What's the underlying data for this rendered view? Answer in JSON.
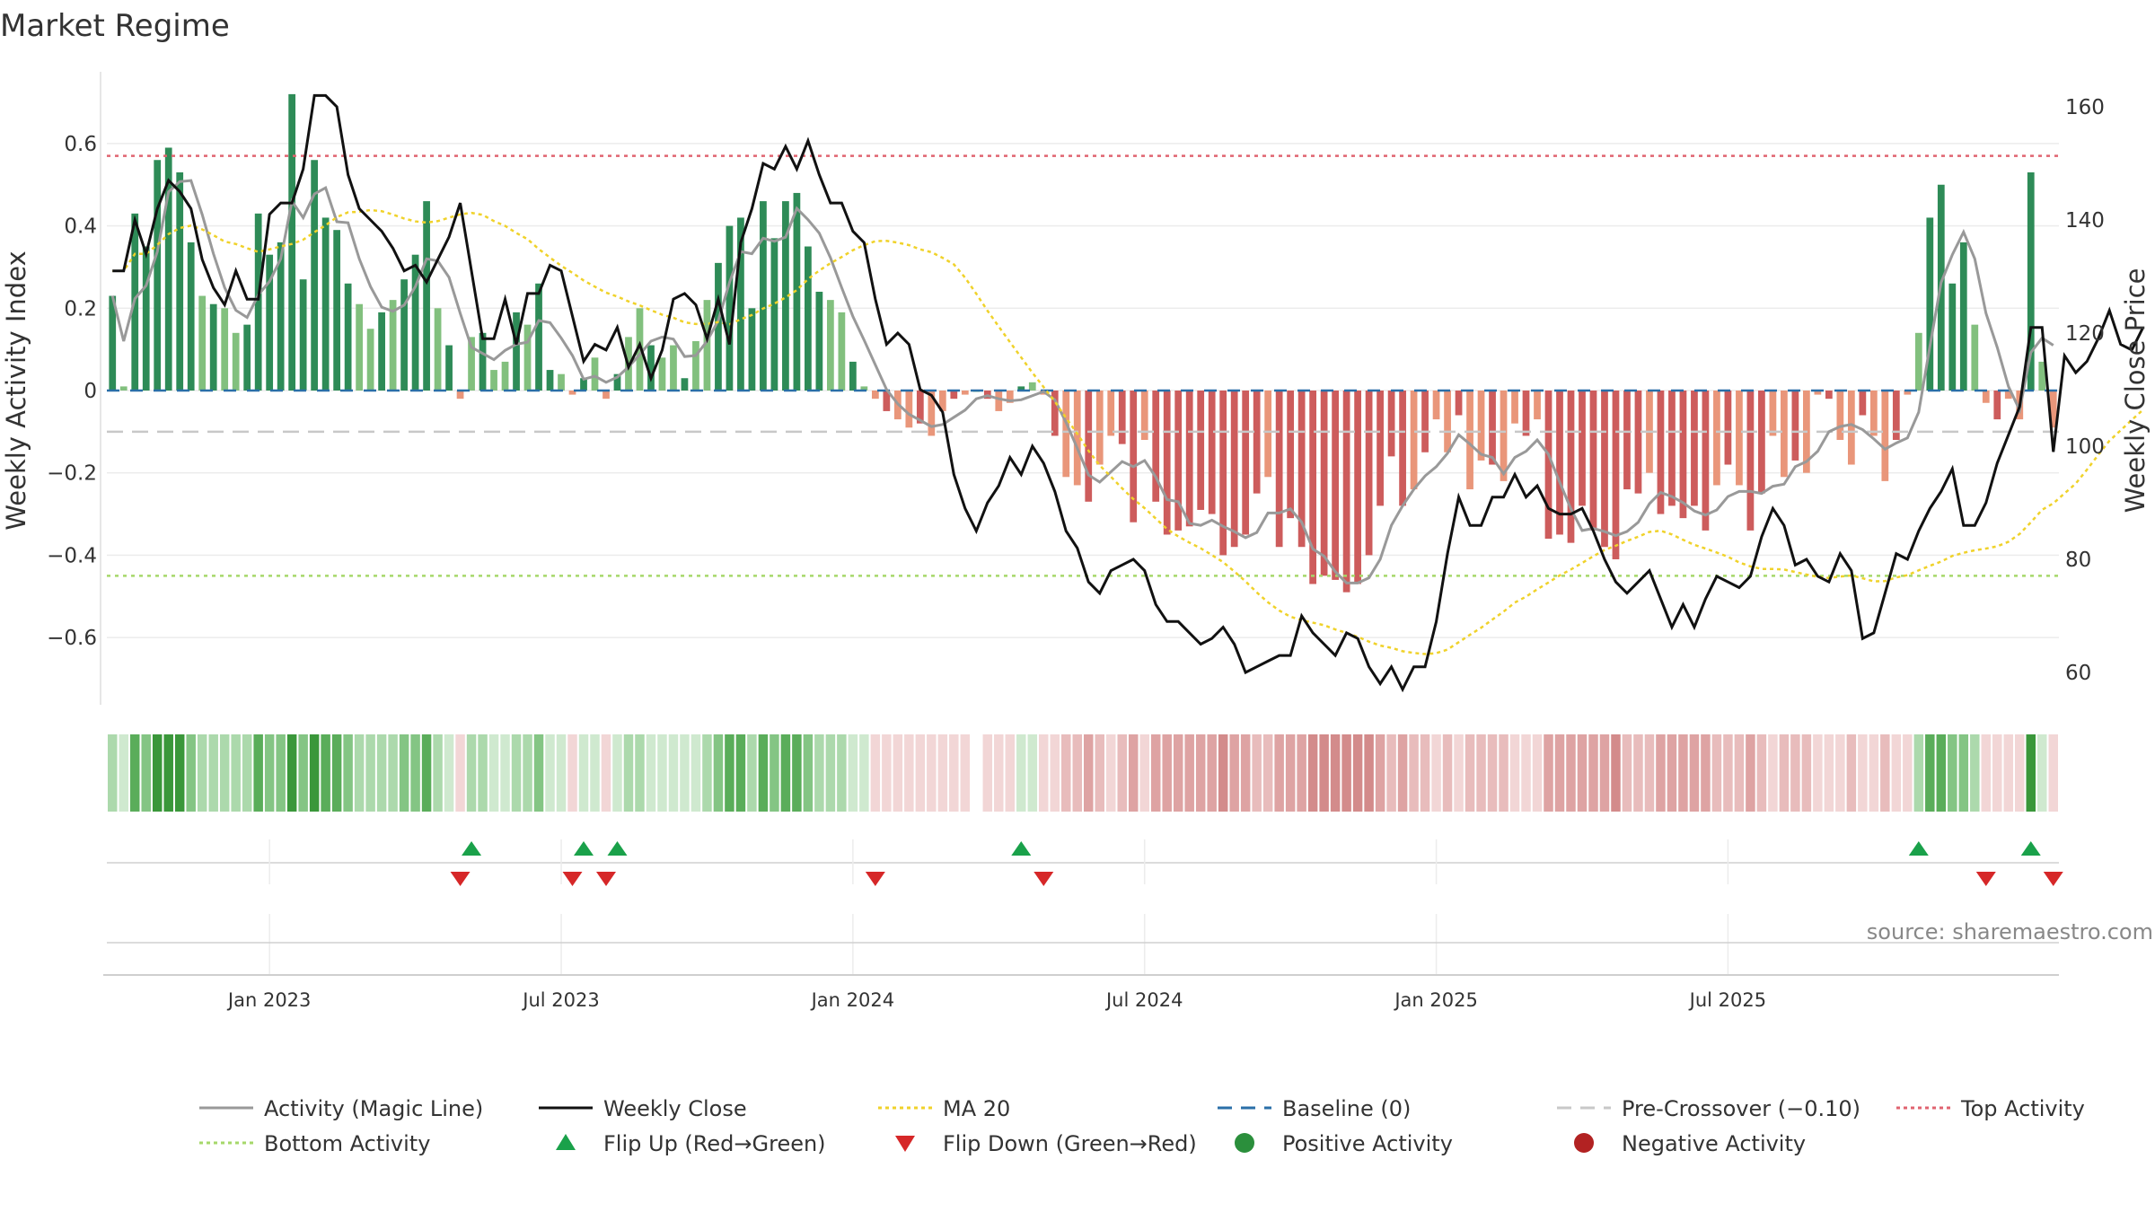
{
  "chart_data": {
    "type": "bar",
    "title": "Market Regime",
    "left_axis": {
      "label": "Weekly Activity Index",
      "ticks": [
        -0.6,
        -0.4,
        -0.2,
        0,
        0.2,
        0.4,
        0.6
      ],
      "tick_labels": [
        "−0.6",
        "−0.4",
        "−0.2",
        "0",
        "0.2",
        "0.4",
        "0.6"
      ],
      "range": [
        -0.76,
        0.76
      ]
    },
    "right_axis": {
      "label": "Weekly Close Price",
      "ticks": [
        60,
        80,
        100,
        120,
        140,
        160
      ],
      "tick_labels": [
        "60",
        "80",
        "100",
        "120",
        "140",
        "160"
      ],
      "range": [
        54,
        163
      ]
    },
    "x_axis": {
      "tick_labels": [
        "Jan 2023",
        "Jul 2023",
        "Jan 2024",
        "Jul 2024",
        "Jan 2025",
        "Jul 2025"
      ],
      "tick_weeks": [
        14,
        40,
        66,
        92,
        118,
        144
      ]
    },
    "top_activity": 0.57,
    "bottom_activity": -0.45,
    "pre_crossover": -0.1,
    "baseline": 0,
    "activity": [
      0.23,
      0.01,
      0.43,
      0.35,
      0.56,
      0.59,
      0.53,
      0.36,
      0.23,
      0.21,
      0.2,
      0.14,
      0.16,
      0.43,
      0.33,
      0.36,
      0.72,
      0.27,
      0.56,
      0.42,
      0.39,
      0.26,
      0.21,
      0.15,
      0.19,
      0.22,
      0.27,
      0.33,
      0.46,
      0.2,
      0.11,
      -0.02,
      0.13,
      0.14,
      0.05,
      0.07,
      0.19,
      0.16,
      0.26,
      0.05,
      0.04,
      -0.01,
      0.03,
      0.08,
      -0.02,
      0.04,
      0.13,
      0.2,
      0.11,
      0.08,
      0.11,
      0.03,
      0.12,
      0.22,
      0.31,
      0.4,
      0.42,
      0.2,
      0.46,
      0.37,
      0.46,
      0.48,
      0.35,
      0.24,
      0.22,
      0.19,
      0.07,
      0.01,
      -0.02,
      -0.05,
      -0.07,
      -0.09,
      -0.08,
      -0.11,
      -0.05,
      -0.02,
      -0.01,
      0,
      -0.02,
      -0.05,
      -0.03,
      0.01,
      0.02,
      -0.01,
      -0.11,
      -0.21,
      -0.23,
      -0.27,
      -0.18,
      -0.11,
      -0.13,
      -0.32,
      -0.12,
      -0.27,
      -0.35,
      -0.34,
      -0.33,
      -0.29,
      -0.3,
      -0.4,
      -0.38,
      -0.35,
      -0.25,
      -0.21,
      -0.38,
      -0.31,
      -0.38,
      -0.47,
      -0.45,
      -0.46,
      -0.49,
      -0.47,
      -0.4,
      -0.28,
      -0.16,
      -0.28,
      -0.24,
      -0.15,
      -0.07,
      -0.15,
      -0.06,
      -0.24,
      -0.17,
      -0.18,
      -0.22,
      -0.08,
      -0.11,
      -0.07,
      -0.36,
      -0.35,
      -0.37,
      -0.28,
      -0.34,
      -0.38,
      -0.41,
      -0.24,
      -0.25,
      -0.2,
      -0.3,
      -0.28,
      -0.31,
      -0.28,
      -0.34,
      -0.23,
      -0.18,
      -0.23,
      -0.34,
      -0.25,
      -0.11,
      -0.21,
      -0.17,
      -0.2,
      -0.01,
      -0.02,
      -0.12,
      -0.18,
      -0.06,
      -0.11,
      -0.22,
      -0.12,
      -0.01,
      0.14,
      0.42,
      0.5,
      0.26,
      0.36,
      0.16,
      -0.03,
      -0.07,
      -0.02,
      -0.07,
      0.53,
      0.07,
      -0.09
    ],
    "weekly_close": [
      131,
      131,
      140,
      134,
      142,
      147,
      145,
      142,
      133,
      128,
      125,
      131,
      126,
      126,
      141,
      143,
      143,
      149,
      162,
      162,
      160,
      148,
      142,
      140,
      138,
      135,
      131,
      132,
      129,
      133,
      137,
      143,
      131,
      119,
      119,
      126,
      118,
      127,
      127,
      132,
      131,
      123,
      115,
      118,
      117,
      121,
      114,
      118,
      112,
      117,
      126,
      127,
      125,
      119,
      126,
      118,
      136,
      142,
      150,
      149,
      153,
      149,
      154,
      148,
      143,
      143,
      138,
      136,
      126,
      118,
      120,
      118,
      110,
      109,
      106,
      95,
      89,
      85,
      90,
      93,
      98,
      95,
      100,
      97,
      92,
      85,
      82,
      76,
      74,
      78,
      79,
      80,
      78,
      72,
      69,
      69,
      67,
      65,
      66,
      68,
      65,
      60,
      61,
      62,
      63,
      63,
      70,
      67,
      65,
      63,
      67,
      66,
      61,
      58,
      61,
      57,
      61,
      61,
      69,
      81,
      91,
      86,
      86,
      91,
      91,
      95,
      91,
      93,
      89,
      88,
      88,
      89,
      85,
      80,
      76,
      74,
      76,
      78,
      73,
      68,
      72,
      68,
      73,
      77,
      76,
      75,
      77,
      84,
      89,
      86,
      79,
      80,
      77,
      76,
      81,
      78,
      66,
      67,
      74,
      81,
      80,
      85,
      89,
      92,
      96,
      86,
      86,
      90,
      97,
      102,
      107,
      121,
      121,
      99,
      116,
      113,
      115,
      119,
      124,
      118,
      117,
      121
    ]
  },
  "legend": [
    {
      "label": "Activity (Magic Line)",
      "icon": "line-gray",
      "color": "#999999"
    },
    {
      "label": "Weekly Close",
      "icon": "line-black",
      "color": "#111111"
    },
    {
      "label": "MA 20",
      "icon": "line-yellow-dotted",
      "color": "#f0d22a"
    },
    {
      "label": "Baseline (0)",
      "icon": "line-blue-dashed",
      "color": "#2a6fa8"
    },
    {
      "label": "Pre-Crossover (−0.10)",
      "icon": "line-gray-dashed",
      "color": "#c8c8c8"
    },
    {
      "label": "Top Activity",
      "icon": "line-red-dotted",
      "color": "#e06470"
    },
    {
      "label": "Bottom Activity",
      "icon": "line-green-dotted",
      "color": "#a6d86a"
    },
    {
      "label": "Flip Up (Red→Green)",
      "icon": "triangle-up-icon",
      "color": "#1aa14a"
    },
    {
      "label": "Flip Down (Green→Red)",
      "icon": "triangle-down-icon",
      "color": "#d62728"
    },
    {
      "label": "Positive Activity",
      "icon": "dot-green-icon",
      "color": "#2b8f3c"
    },
    {
      "label": "Negative Activity",
      "icon": "dot-red-icon",
      "color": "#b22222"
    }
  ],
  "colors": {
    "strong_green": "#2e8b57",
    "light_green": "#82c07e",
    "strong_red": "#cd5c5c",
    "light_red": "#e9967a"
  },
  "source": "source: sharemaestro.com"
}
